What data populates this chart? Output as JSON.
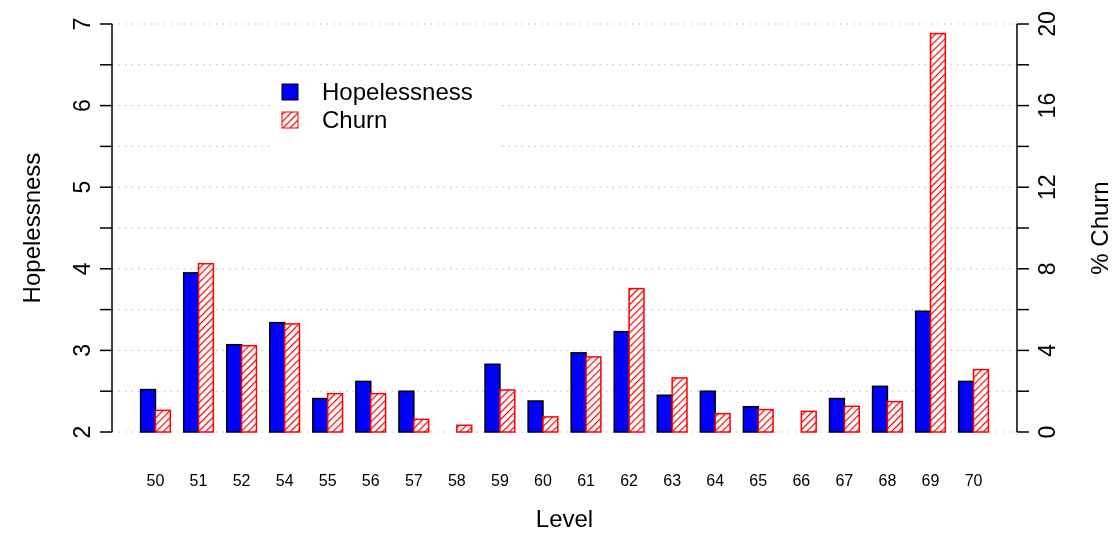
{
  "chart_data": {
    "type": "bar",
    "xlabel": "Level",
    "ylabel": "Hopelessness",
    "y2label": "% Churn",
    "categories": [
      "50",
      "51",
      "52",
      "54",
      "55",
      "56",
      "57",
      "58",
      "59",
      "60",
      "61",
      "62",
      "63",
      "64",
      "65",
      "66",
      "67",
      "68",
      "69",
      "70"
    ],
    "series": [
      {
        "name": "Hopelessness",
        "color": "#0000ff",
        "values": [
          2.52,
          3.95,
          3.07,
          3.34,
          2.41,
          2.62,
          2.5,
          2.0,
          2.83,
          2.38,
          2.97,
          3.23,
          2.45,
          2.5,
          2.31,
          2.0,
          2.41,
          2.56,
          3.48,
          2.62
        ]
      },
      {
        "name": "Churn",
        "color": "#ff0000",
        "axis": "y2",
        "values": [
          1.06,
          8.25,
          4.23,
          5.3,
          1.88,
          1.88,
          0.62,
          0.33,
          2.06,
          0.74,
          3.68,
          7.03,
          2.65,
          0.9,
          1.1,
          1.01,
          1.26,
          1.49,
          19.53,
          3.06
        ]
      }
    ],
    "ylim": [
      2,
      7
    ],
    "yticks": [
      2,
      {
        "value": 2.5,
        "label": null
      },
      3,
      {
        "value": 3.5,
        "label": null
      },
      4,
      {
        "value": 4.5,
        "label": null
      },
      5,
      {
        "value": 5.5,
        "label": null
      },
      6,
      {
        "value": 6.5,
        "label": null
      },
      7
    ],
    "y2lim": [
      0,
      20
    ],
    "y2ticks": [
      0,
      {
        "value": 2,
        "label": null
      },
      4,
      {
        "value": 6,
        "label": null
      },
      8,
      {
        "value": 10,
        "label": null
      },
      12,
      {
        "value": 14,
        "label": null
      },
      16,
      {
        "value": 18,
        "label": null
      },
      20
    ],
    "grid": "y",
    "legend": "top left"
  }
}
